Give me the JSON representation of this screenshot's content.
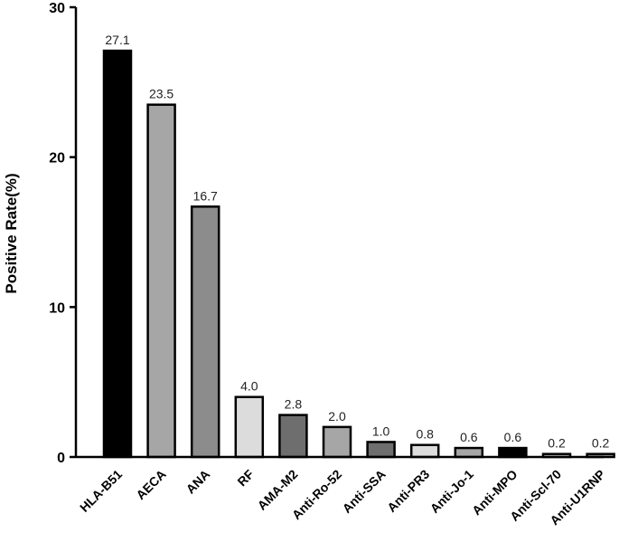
{
  "chart_data": {
    "type": "bar",
    "title": "",
    "xlabel": "",
    "ylabel": "Positive Rate(%)",
    "ylim": [
      0,
      30
    ],
    "yticks": [
      0,
      10,
      20,
      30
    ],
    "grid": false,
    "legend": "none",
    "categories": [
      "HLA-B51",
      "AECA",
      "ANA",
      "RF",
      "AMA-M2",
      "Anti-Ro-52",
      "Anti-SSA",
      "Anti-PR3",
      "Anti-Jo-1",
      "Anti-MPO",
      "Anti-Scl-70",
      "Anti-U1RNP"
    ],
    "values": [
      27.1,
      23.5,
      16.7,
      4.0,
      2.8,
      2.0,
      1.0,
      0.8,
      0.6,
      0.6,
      0.2,
      0.2
    ],
    "value_labels": [
      "27.1",
      "23.5",
      "16.7",
      "4.0",
      "2.8",
      "2.0",
      "1.0",
      "0.8",
      "0.6",
      "0.6",
      "0.2",
      "0.2"
    ],
    "bar_colors": [
      "#000000",
      "#a6a6a6",
      "#8c8c8c",
      "#dcdcdc",
      "#6e6e6e",
      "#a6a6a6",
      "#6e6e6e",
      "#dcdcdc",
      "#a6a6a6",
      "#000000",
      "#dcdcdc",
      "#a6a6a6"
    ]
  }
}
